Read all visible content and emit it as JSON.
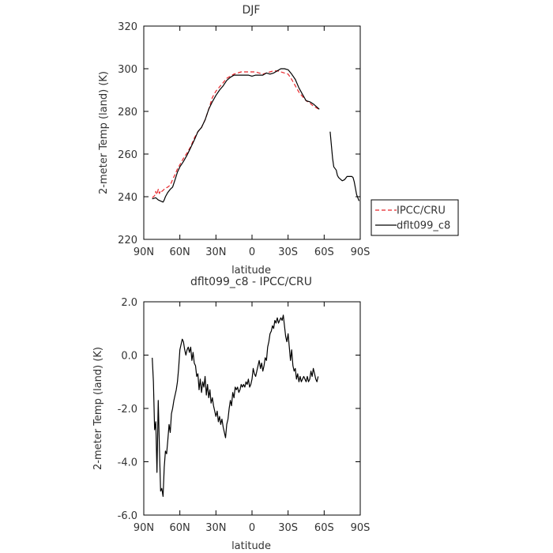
{
  "chart_data": [
    {
      "type": "line",
      "title": "DJF",
      "xlabel": "latitude",
      "ylabel": "2-meter Temp (land) (K)",
      "xlim": [
        90,
        -90
      ],
      "ylim": [
        220,
        320
      ],
      "xticks": [
        90,
        60,
        30,
        0,
        -30,
        -60,
        -90
      ],
      "xticklabels": [
        "90N",
        "60N",
        "30N",
        "0",
        "30S",
        "60S",
        "90S"
      ],
      "yticks": [
        220,
        240,
        260,
        280,
        300,
        320
      ],
      "yticklabels": [
        "220",
        "240",
        "260",
        "280",
        "300",
        "320"
      ],
      "legend": {
        "placement": "right",
        "entries": [
          {
            "label": "IPCC/CRU",
            "color": "#e8262b",
            "dash": "dashed"
          },
          {
            "label": "dflt099_c8",
            "color": "#000000",
            "dash": "solid"
          }
        ]
      },
      "series": [
        {
          "name": "IPCC/CRU",
          "color": "#e8262b",
          "dash": "dashed",
          "x": [
            83,
            81,
            80,
            79,
            78,
            77,
            76,
            75,
            74,
            72,
            70,
            68,
            66,
            64,
            62,
            60,
            57,
            54,
            51,
            48,
            45,
            42,
            39,
            36,
            33,
            30,
            27,
            24,
            21,
            18,
            15,
            12,
            9,
            6,
            3,
            0,
            -3,
            -6,
            -9,
            -12,
            -15,
            -18,
            -21,
            -24,
            -27,
            -30,
            -33,
            -36,
            -39,
            -42,
            -45,
            -48,
            -51,
            -54,
            -56
          ],
          "y": [
            239.5,
            240.5,
            242.5,
            241,
            243.5,
            241.5,
            243,
            242.5,
            243,
            244,
            244.5,
            245.5,
            248,
            250.5,
            253,
            255,
            258,
            260.5,
            263.5,
            267.5,
            270.5,
            272.5,
            276,
            281,
            286.5,
            289.5,
            291.5,
            293.5,
            295.5,
            296.5,
            297.5,
            298,
            298.5,
            298.5,
            298.5,
            298.5,
            298.5,
            298,
            297.5,
            298,
            298.5,
            299,
            299,
            298.5,
            298,
            297.5,
            295,
            292,
            289,
            287,
            285,
            284,
            282.5,
            281.5,
            281
          ]
        },
        {
          "name": "dflt099_c8",
          "color": "#000000",
          "dash": "solid",
          "x": [
            83,
            80,
            78,
            76,
            74,
            73,
            72,
            70,
            68,
            66,
            64,
            62,
            60,
            57,
            54,
            51,
            48,
            45,
            42,
            39,
            36,
            33,
            30,
            27,
            24,
            21,
            18,
            15,
            12,
            9,
            6,
            3,
            0,
            -3,
            -6,
            -9,
            -12,
            -15,
            -18,
            -21,
            -24,
            -27,
            -30,
            -33,
            -36,
            -39,
            -42,
            -45,
            -48,
            -51,
            -54,
            -56
          ],
          "y": [
            239,
            239.5,
            238.5,
            238,
            237.5,
            238.5,
            240,
            242,
            243.5,
            244.5,
            248,
            251.5,
            254,
            256.5,
            259.5,
            263,
            266.5,
            270.5,
            272.5,
            276,
            281,
            284.5,
            287.5,
            290,
            292,
            294.5,
            296,
            297,
            297,
            297,
            297,
            297,
            296.5,
            297,
            297,
            297,
            298,
            297.5,
            298,
            299,
            300,
            300,
            299.5,
            297.5,
            295,
            291,
            288,
            285,
            284.5,
            283.5,
            282,
            281
          ]
        },
        {
          "name": "dflt099_c8",
          "color": "#000000",
          "dash": "solid",
          "x": [
            -65,
            -66,
            -67,
            -68,
            -70,
            -71,
            -72,
            -74,
            -75,
            -77,
            -79,
            -81,
            -83,
            -84,
            -85,
            -86,
            -87,
            -89
          ],
          "y": [
            270.5,
            264,
            258,
            254,
            252.5,
            250,
            249,
            248,
            247.5,
            248,
            249.5,
            249.5,
            249.5,
            249,
            247,
            244,
            241,
            238
          ]
        }
      ]
    },
    {
      "type": "line",
      "title": "dflt099_c8 - IPCC/CRU",
      "xlabel": "latitude",
      "ylabel": "2-meter Temp (land) (K)",
      "xlim": [
        90,
        -90
      ],
      "ylim": [
        -6.0,
        2.0
      ],
      "xticks": [
        90,
        60,
        30,
        0,
        -30,
        -60,
        -90
      ],
      "xticklabels": [
        "90N",
        "60N",
        "30N",
        "0",
        "30S",
        "60S",
        "90S"
      ],
      "yticks": [
        -6.0,
        -4.0,
        -2.0,
        0.0,
        2.0
      ],
      "yticklabels": [
        "-6.0",
        "-4.0",
        "-2.0",
        "0.0",
        "2.0"
      ],
      "series": [
        {
          "color": "#000000",
          "dash": "solid",
          "x": [
            83,
            82,
            81,
            80,
            79,
            78,
            77,
            76,
            75,
            74,
            73,
            72,
            71,
            70,
            69,
            68,
            67,
            66,
            65,
            64,
            63,
            62,
            61,
            60,
            59,
            58,
            57,
            56,
            55,
            54,
            53,
            52,
            51,
            50,
            49,
            48,
            47,
            46,
            45,
            44,
            43,
            42,
            41,
            40,
            39,
            38,
            37,
            36,
            35,
            34,
            33,
            32,
            31,
            30,
            29,
            28,
            27,
            26,
            25,
            24,
            23,
            22,
            21,
            20,
            19,
            18,
            17,
            16,
            15,
            14,
            13,
            12,
            11,
            10,
            9,
            8,
            7,
            6,
            5,
            4,
            3,
            2,
            1,
            0,
            -1,
            -2,
            -3,
            -4,
            -5,
            -6,
            -7,
            -8,
            -9,
            -10,
            -11,
            -12,
            -13,
            -14,
            -15,
            -16,
            -17,
            -18,
            -19,
            -20,
            -21,
            -22,
            -23,
            -24,
            -25,
            -26,
            -27,
            -28,
            -29,
            -30,
            -31,
            -32,
            -33,
            -34,
            -35,
            -36,
            -37,
            -38,
            -39,
            -40,
            -41,
            -42,
            -43,
            -44,
            -45,
            -46,
            -47,
            -48,
            -49,
            -50,
            -51,
            -52,
            -53,
            -54,
            -55
          ],
          "y": [
            -0.1,
            -1.0,
            -2.8,
            -2.5,
            -4.4,
            -1.7,
            -3.5,
            -5.1,
            -5.0,
            -5.3,
            -4.2,
            -3.6,
            -3.7,
            -3.2,
            -2.6,
            -2.9,
            -2.2,
            -2.0,
            -1.7,
            -1.5,
            -1.3,
            -1.0,
            -0.5,
            0.2,
            0.4,
            0.6,
            0.5,
            0.2,
            0.0,
            0.2,
            0.3,
            0.1,
            0.3,
            -0.2,
            0.1,
            -0.3,
            -0.4,
            -0.8,
            -0.7,
            -1.3,
            -0.9,
            -1.4,
            -1.0,
            -1.2,
            -0.8,
            -1.5,
            -1.1,
            -1.6,
            -1.3,
            -1.8,
            -1.6,
            -1.9,
            -2.1,
            -2.3,
            -2.1,
            -2.5,
            -2.3,
            -2.6,
            -2.4,
            -2.7,
            -2.9,
            -3.1,
            -2.6,
            -2.4,
            -2.0,
            -1.7,
            -1.9,
            -1.4,
            -1.6,
            -1.2,
            -1.3,
            -1.2,
            -1.4,
            -1.3,
            -1.1,
            -1.2,
            -1.1,
            -1.2,
            -1.0,
            -1.1,
            -0.9,
            -1.2,
            -1.1,
            -0.9,
            -0.5,
            -0.7,
            -0.8,
            -0.6,
            -0.4,
            -0.2,
            -0.5,
            -0.3,
            -0.6,
            -0.4,
            -0.1,
            -0.2,
            0.3,
            0.5,
            0.8,
            0.9,
            1.1,
            1.0,
            1.3,
            1.2,
            1.4,
            1.2,
            1.3,
            1.4,
            1.3,
            1.5,
            1.1,
            0.7,
            0.5,
            0.8,
            0.3,
            -0.2,
            0.2,
            -0.4,
            -0.6,
            -0.5,
            -0.9,
            -0.7,
            -1.0,
            -0.8,
            -1.0,
            -0.9,
            -0.8,
            -0.9,
            -1.0,
            -0.8,
            -1.0,
            -0.9,
            -0.6,
            -0.8,
            -0.5,
            -0.7,
            -0.9,
            -1.0,
            -0.8
          ]
        }
      ]
    }
  ]
}
